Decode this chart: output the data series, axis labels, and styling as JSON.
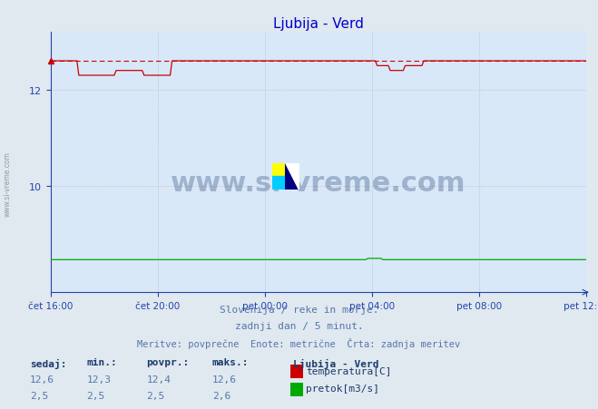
{
  "title": "Ljubija - Verd",
  "title_color": "#0000cc",
  "background_color": "#e0e8f0",
  "plot_bg_color": "#d8e8f8",
  "x_labels": [
    "čet 16:00",
    "čet 20:00",
    "pet 00:00",
    "pet 04:00",
    "pet 08:00",
    "pet 12:00"
  ],
  "y_min": 7.8,
  "y_max": 13.2,
  "y_ticks": [
    10,
    12
  ],
  "temp_color": "#cc0000",
  "flow_color": "#00aa00",
  "grid_color": "#aabbcc",
  "grid_color_red": "#ddaaaa",
  "axis_color": "#2244aa",
  "tick_color": "#2244aa",
  "watermark_text": "www.si-vreme.com",
  "watermark_color": "#1a3a6b",
  "subtitle1": "Slovenija / reke in morje.",
  "subtitle2": "zadnji dan / 5 minut.",
  "subtitle3": "Meritve: povprečne  Enote: metrične  Črta: zadnja meritev",
  "subtitle_color": "#5577aa",
  "legend_title": "Ljubija - Verd",
  "legend_color": "#1a3a6b",
  "label_temp": "temperatura[C]",
  "label_flow": "pretok[m3/s]",
  "stats_headers": [
    "sedaj:",
    "min.:",
    "povpr.:",
    "maks.:"
  ],
  "stats_temp": [
    "12,6",
    "12,3",
    "12,4",
    "12,6"
  ],
  "stats_flow": [
    "2,5",
    "2,5",
    "2,5",
    "2,6"
  ],
  "sidebar_text": "www.si-vreme.com",
  "sidebar_color": "#999999",
  "n_points": 288,
  "temp_base": 12.6,
  "flow_base": 2.5,
  "flow_ylim_max": 20.0
}
